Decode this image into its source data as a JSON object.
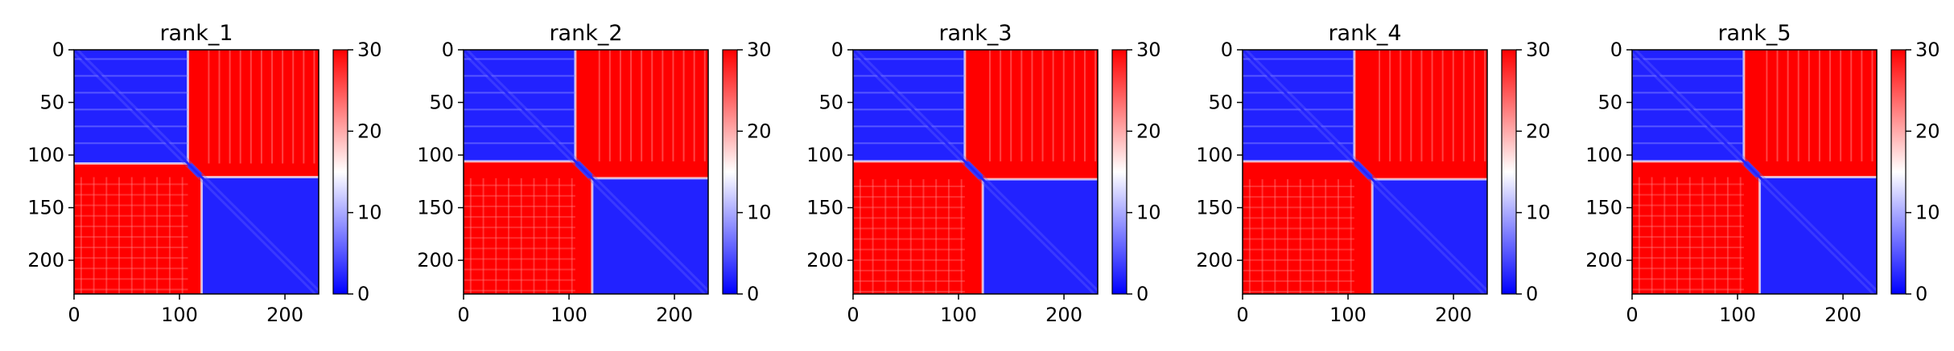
{
  "figure": {
    "background": "#ffffff"
  },
  "chart_data": [
    {
      "type": "heatmap",
      "title": "rank_1",
      "xlabel": "",
      "ylabel": "",
      "colormap": "bwr",
      "colors": {
        "low": "#0000ff",
        "mid": "#ffffff",
        "high": "#ff0000"
      },
      "vmin": 0,
      "vmax": 30,
      "xlim": [
        0,
        232
      ],
      "ylim": [
        232,
        0
      ],
      "xticks": [
        0,
        100,
        200
      ],
      "yticks": [
        0,
        50,
        100,
        150,
        200
      ],
      "colorbar_ticks": [
        0,
        10,
        20,
        30
      ],
      "grid": false,
      "matrix_size": 232,
      "domain_split": 108,
      "linker_end": 121,
      "diagonal_value": 0,
      "intra_domain_value": 2,
      "inter_domain_value": 30
    },
    {
      "type": "heatmap",
      "title": "rank_2",
      "xlabel": "",
      "ylabel": "",
      "colormap": "bwr",
      "colors": {
        "low": "#0000ff",
        "mid": "#ffffff",
        "high": "#ff0000"
      },
      "vmin": 0,
      "vmax": 30,
      "xlim": [
        0,
        232
      ],
      "ylim": [
        232,
        0
      ],
      "xticks": [
        0,
        100,
        200
      ],
      "yticks": [
        0,
        50,
        100,
        150,
        200
      ],
      "colorbar_ticks": [
        0,
        10,
        20,
        30
      ],
      "grid": false,
      "matrix_size": 232,
      "domain_split": 106,
      "linker_end": 122,
      "diagonal_value": 0,
      "intra_domain_value": 2,
      "inter_domain_value": 30
    },
    {
      "type": "heatmap",
      "title": "rank_3",
      "xlabel": "",
      "ylabel": "",
      "colormap": "bwr",
      "colors": {
        "low": "#0000ff",
        "mid": "#ffffff",
        "high": "#ff0000"
      },
      "vmin": 0,
      "vmax": 30,
      "xlim": [
        0,
        232
      ],
      "ylim": [
        232,
        0
      ],
      "xticks": [
        0,
        100,
        200
      ],
      "yticks": [
        0,
        50,
        100,
        150,
        200
      ],
      "colorbar_ticks": [
        0,
        10,
        20,
        30
      ],
      "grid": false,
      "matrix_size": 232,
      "domain_split": 106,
      "linker_end": 123,
      "diagonal_value": 0,
      "intra_domain_value": 2,
      "inter_domain_value": 30
    },
    {
      "type": "heatmap",
      "title": "rank_4",
      "xlabel": "",
      "ylabel": "",
      "colormap": "bwr",
      "colors": {
        "low": "#0000ff",
        "mid": "#ffffff",
        "high": "#ff0000"
      },
      "vmin": 0,
      "vmax": 30,
      "xlim": [
        0,
        232
      ],
      "ylim": [
        232,
        0
      ],
      "xticks": [
        0,
        100,
        200
      ],
      "yticks": [
        0,
        50,
        100,
        150,
        200
      ],
      "colorbar_ticks": [
        0,
        10,
        20,
        30
      ],
      "grid": false,
      "matrix_size": 232,
      "domain_split": 106,
      "linker_end": 123,
      "diagonal_value": 0,
      "intra_domain_value": 2,
      "inter_domain_value": 30
    },
    {
      "type": "heatmap",
      "title": "rank_5",
      "xlabel": "",
      "ylabel": "",
      "colormap": "bwr",
      "colors": {
        "low": "#0000ff",
        "mid": "#ffffff",
        "high": "#ff0000"
      },
      "vmin": 0,
      "vmax": 30,
      "xlim": [
        0,
        232
      ],
      "ylim": [
        232,
        0
      ],
      "xticks": [
        0,
        100,
        200
      ],
      "yticks": [
        0,
        50,
        100,
        150,
        200
      ],
      "colorbar_ticks": [
        0,
        10,
        20,
        30
      ],
      "grid": false,
      "matrix_size": 232,
      "domain_split": 106,
      "linker_end": 121,
      "diagonal_value": 0,
      "intra_domain_value": 2,
      "inter_domain_value": 30
    }
  ]
}
